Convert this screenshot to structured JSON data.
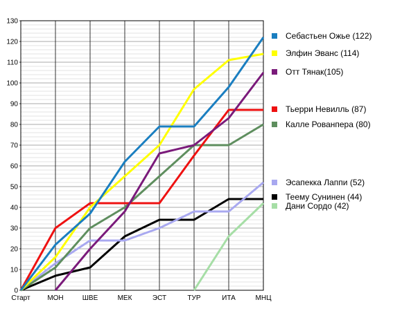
{
  "chart_data": {
    "type": "line",
    "title": "",
    "xlabel": "",
    "ylabel": "",
    "categories": [
      "Старт",
      "МОН",
      "ШВЕ",
      "МЕК",
      "ЭСТ",
      "ТУР",
      "ИТА",
      "МНЦ"
    ],
    "ylim": [
      0,
      130
    ],
    "ytick_step": 10,
    "minor_grid_step": 2,
    "grid": true,
    "legend_position": "right",
    "series": [
      {
        "name": "Себастьен Ожье (122)",
        "color": "#1a7ec0",
        "values": [
          0,
          22,
          37,
          62,
          79,
          79,
          98,
          122
        ]
      },
      {
        "name": "Элфин Эванс (114)",
        "color": "#ffff00",
        "values": [
          0,
          16,
          40,
          55,
          70,
          97,
          111,
          114
        ]
      },
      {
        "name": "Отт Тянак(105)",
        "color": "#7a1a7a",
        "values": [
          null,
          0,
          20,
          38,
          66,
          70,
          83,
          105
        ]
      },
      {
        "name": "Тьерри Невилль (87)",
        "color": "#ee1111",
        "values": [
          0,
          30,
          42,
          42,
          42,
          65,
          87,
          87
        ]
      },
      {
        "name": "Калле Рованпера (80)",
        "color": "#5e8e5e",
        "values": [
          0,
          11,
          30,
          40,
          55,
          70,
          70,
          80
        ]
      },
      {
        "name": "Эсапекка Лаппи (52)",
        "color": "#a8a8f0",
        "values": [
          0,
          13,
          24,
          24,
          30,
          38,
          38,
          52
        ]
      },
      {
        "name": "Теему Сунинен (44)",
        "color": "#000000",
        "values": [
          0,
          7,
          11,
          26,
          34,
          34,
          44,
          44
        ]
      },
      {
        "name": "Дани Сордо (42)",
        "color": "#a6dea6",
        "values": [
          null,
          null,
          null,
          null,
          null,
          0,
          26,
          42
        ]
      }
    ]
  }
}
